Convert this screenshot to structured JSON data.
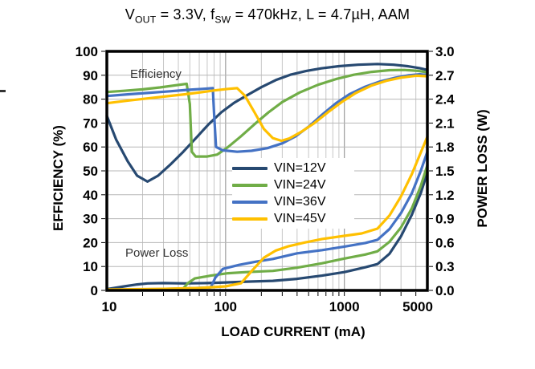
{
  "title": {
    "full_text": "VOUT = 3.3V, fSW = 470kHz, L = 4.7µH, AAM",
    "parts": [
      {
        "text": "V"
      },
      {
        "sub": "OUT"
      },
      {
        "text": " = 3.3V, f"
      },
      {
        "sub": "SW"
      },
      {
        "text": " = 470kHz, L = 4.7µH, AAM"
      }
    ]
  },
  "colors": {
    "vin12": "#274971",
    "vin24": "#70AD47",
    "vin36": "#4472C4",
    "vin45": "#FFC000",
    "grid_minor": "#c6c6c6",
    "grid_decade": "#9c9c9c",
    "grid_horizontal": "#b7b7b7",
    "frame": "#000000",
    "background": "#ffffff"
  },
  "axes": {
    "x": {
      "label": "LOAD CURRENT  (mA)",
      "scale": "log",
      "min": 10,
      "max": 5000,
      "tick_values": [
        10,
        100,
        1000,
        5000
      ],
      "tick_labels": [
        "10",
        "100",
        "1000",
        "5000"
      ],
      "tick_label_dx": [
        3,
        0,
        0,
        -12
      ]
    },
    "y_left": {
      "label": "EFFICIENCY  (%)",
      "min": 0,
      "max": 100,
      "step": 10,
      "tick_labels": [
        "100",
        "90",
        "80",
        "70",
        "60",
        "50",
        "40",
        "30",
        "20",
        "10",
        "0"
      ]
    },
    "y_right": {
      "label": "POWER LOSS (W)",
      "min": 0.0,
      "max": 3.0,
      "step": 0.3,
      "tick_labels": [
        "3.0",
        "2.7",
        "2.4",
        "2.1",
        "1.8",
        "1.5",
        "1.2",
        "0.9",
        "0.6",
        "0.3",
        "0.0"
      ]
    }
  },
  "annotations": {
    "efficiency": "Efficiency",
    "power_loss": "Power Loss"
  },
  "legend": {
    "items": [
      {
        "label": "VIN=12V",
        "color": "vin12"
      },
      {
        "label": "VIN=24V",
        "color": "vin24"
      },
      {
        "label": "VIN=36V",
        "color": "vin36"
      },
      {
        "label": "VIN=45V",
        "color": "vin45"
      }
    ]
  },
  "chart_data": {
    "type": "line",
    "title": "VOUT = 3.3V, fSW = 470kHz, L = 4.7µH, AAM",
    "xlabel": "LOAD CURRENT (mA)",
    "x_scale": "log",
    "x_range_mA": [
      10,
      5000
    ],
    "ylabel_left": "EFFICIENCY (%)",
    "y_left_range": [
      0,
      100
    ],
    "ylabel_right": "POWER LOSS (W)",
    "y_right_range": [
      0.0,
      3.0
    ],
    "grid": true,
    "legend_position": "inside-middle",
    "series": [
      {
        "name": "VIN=12V Efficiency",
        "axis": "left",
        "unit": "%",
        "color": "vin12",
        "points": [
          [
            10,
            73
          ],
          [
            12,
            63
          ],
          [
            15,
            54
          ],
          [
            18,
            48
          ],
          [
            22,
            45.5
          ],
          [
            27,
            48
          ],
          [
            34,
            52.5
          ],
          [
            44,
            58
          ],
          [
            57,
            64
          ],
          [
            72,
            69.5
          ],
          [
            92,
            74.5
          ],
          [
            118,
            78.5
          ],
          [
            150,
            81.5
          ],
          [
            200,
            85
          ],
          [
            265,
            88
          ],
          [
            350,
            90.2
          ],
          [
            470,
            91.7
          ],
          [
            640,
            92.9
          ],
          [
            900,
            93.8
          ],
          [
            1300,
            94.4
          ],
          [
            1900,
            94.7
          ],
          [
            2600,
            94.4
          ],
          [
            3400,
            93.8
          ],
          [
            4300,
            93
          ],
          [
            5000,
            92.2
          ]
        ]
      },
      {
        "name": "VIN=24V Efficiency",
        "axis": "left",
        "unit": "%",
        "color": "vin24",
        "points": [
          [
            10,
            83
          ],
          [
            14,
            83.5
          ],
          [
            20,
            84.1
          ],
          [
            28,
            84.9
          ],
          [
            38,
            85.8
          ],
          [
            47,
            86.4
          ],
          [
            50,
            78
          ],
          [
            52,
            58
          ],
          [
            56,
            56
          ],
          [
            70,
            56
          ],
          [
            85,
            56.8
          ],
          [
            105,
            60
          ],
          [
            135,
            64.5
          ],
          [
            175,
            69.5
          ],
          [
            230,
            74.5
          ],
          [
            300,
            78.8
          ],
          [
            420,
            82.8
          ],
          [
            600,
            86
          ],
          [
            850,
            88.4
          ],
          [
            1200,
            90.2
          ],
          [
            1700,
            91.4
          ],
          [
            2400,
            92.1
          ],
          [
            3200,
            92.2
          ],
          [
            4200,
            91.8
          ],
          [
            5000,
            91.2
          ]
        ]
      },
      {
        "name": "VIN=36V Efficiency",
        "axis": "left",
        "unit": "%",
        "color": "vin36",
        "points": [
          [
            10,
            81.3
          ],
          [
            15,
            82
          ],
          [
            23,
            82.7
          ],
          [
            34,
            83.3
          ],
          [
            48,
            83.9
          ],
          [
            64,
            84.3
          ],
          [
            78,
            84.6
          ],
          [
            80,
            74
          ],
          [
            83,
            60
          ],
          [
            95,
            58.6
          ],
          [
            125,
            58
          ],
          [
            165,
            58.4
          ],
          [
            225,
            59.5
          ],
          [
            300,
            61.5
          ],
          [
            390,
            64.5
          ],
          [
            500,
            68.5
          ],
          [
            650,
            73.5
          ],
          [
            850,
            78.3
          ],
          [
            1100,
            82
          ],
          [
            1500,
            85.2
          ],
          [
            2000,
            87.4
          ],
          [
            2700,
            89
          ],
          [
            3500,
            90
          ],
          [
            4300,
            90.4
          ],
          [
            5000,
            90.1
          ]
        ]
      },
      {
        "name": "VIN=45V Efficiency",
        "axis": "left",
        "unit": "%",
        "color": "vin45",
        "points": [
          [
            10,
            78.3
          ],
          [
            15,
            79.4
          ],
          [
            22,
            80.3
          ],
          [
            32,
            81.2
          ],
          [
            45,
            82
          ],
          [
            62,
            82.9
          ],
          [
            82,
            83.7
          ],
          [
            105,
            84.3
          ],
          [
            125,
            84.6
          ],
          [
            145,
            81.5
          ],
          [
            175,
            74.5
          ],
          [
            210,
            67.5
          ],
          [
            250,
            63.7
          ],
          [
            295,
            62.6
          ],
          [
            345,
            63.6
          ],
          [
            430,
            66.2
          ],
          [
            560,
            70
          ],
          [
            730,
            74.6
          ],
          [
            950,
            78.8
          ],
          [
            1250,
            82.6
          ],
          [
            1700,
            85.7
          ],
          [
            2300,
            87.8
          ],
          [
            3000,
            89
          ],
          [
            4000,
            89.8
          ],
          [
            5000,
            89.6
          ]
        ]
      },
      {
        "name": "VIN=12V Power Loss",
        "axis": "right",
        "unit": "W",
        "color": "vin12",
        "points": [
          [
            10,
            0.015
          ],
          [
            14,
            0.05
          ],
          [
            18,
            0.075
          ],
          [
            22,
            0.088
          ],
          [
            30,
            0.092
          ],
          [
            45,
            0.088
          ],
          [
            70,
            0.092
          ],
          [
            100,
            0.1
          ],
          [
            150,
            0.11
          ],
          [
            250,
            0.12
          ],
          [
            400,
            0.145
          ],
          [
            650,
            0.185
          ],
          [
            1000,
            0.23
          ],
          [
            1500,
            0.29
          ],
          [
            1900,
            0.33
          ],
          [
            2400,
            0.46
          ],
          [
            3000,
            0.68
          ],
          [
            3700,
            0.95
          ],
          [
            4400,
            1.22
          ],
          [
            5000,
            1.48
          ]
        ]
      },
      {
        "name": "VIN=24V Power Loss",
        "axis": "right",
        "unit": "W",
        "color": "vin24",
        "points": [
          [
            10,
            0.006
          ],
          [
            20,
            0.011
          ],
          [
            33,
            0.017
          ],
          [
            44,
            0.023
          ],
          [
            48,
            0.09
          ],
          [
            55,
            0.15
          ],
          [
            75,
            0.185
          ],
          [
            105,
            0.215
          ],
          [
            150,
            0.23
          ],
          [
            250,
            0.245
          ],
          [
            400,
            0.285
          ],
          [
            650,
            0.34
          ],
          [
            1000,
            0.4
          ],
          [
            1500,
            0.45
          ],
          [
            1900,
            0.49
          ],
          [
            2400,
            0.61
          ],
          [
            3000,
            0.79
          ],
          [
            3700,
            1.03
          ],
          [
            4400,
            1.31
          ],
          [
            5000,
            1.57
          ]
        ]
      },
      {
        "name": "VIN=36V Power Loss",
        "axis": "right",
        "unit": "W",
        "color": "vin36",
        "points": [
          [
            10,
            0.008
          ],
          [
            25,
            0.015
          ],
          [
            50,
            0.026
          ],
          [
            75,
            0.038
          ],
          [
            82,
            0.16
          ],
          [
            95,
            0.27
          ],
          [
            130,
            0.32
          ],
          [
            180,
            0.36
          ],
          [
            250,
            0.395
          ],
          [
            400,
            0.465
          ],
          [
            650,
            0.505
          ],
          [
            1000,
            0.55
          ],
          [
            1500,
            0.595
          ],
          [
            1900,
            0.635
          ],
          [
            2400,
            0.77
          ],
          [
            3000,
            0.97
          ],
          [
            3700,
            1.22
          ],
          [
            4400,
            1.5
          ],
          [
            5000,
            1.74
          ]
        ]
      },
      {
        "name": "VIN=45V Power Loss",
        "axis": "right",
        "unit": "W",
        "color": "vin45",
        "points": [
          [
            10,
            0.01
          ],
          [
            30,
            0.019
          ],
          [
            60,
            0.03
          ],
          [
            100,
            0.05
          ],
          [
            135,
            0.09
          ],
          [
            165,
            0.24
          ],
          [
            210,
            0.41
          ],
          [
            265,
            0.5
          ],
          [
            340,
            0.555
          ],
          [
            460,
            0.6
          ],
          [
            650,
            0.645
          ],
          [
            1000,
            0.685
          ],
          [
            1400,
            0.715
          ],
          [
            1900,
            0.775
          ],
          [
            2400,
            0.94
          ],
          [
            3000,
            1.18
          ],
          [
            3700,
            1.46
          ],
          [
            4400,
            1.73
          ],
          [
            5000,
            1.93
          ]
        ]
      }
    ]
  }
}
